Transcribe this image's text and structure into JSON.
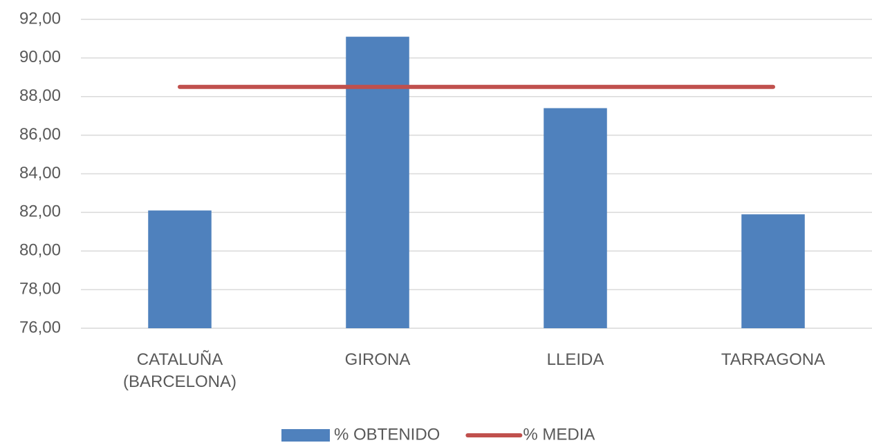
{
  "chart_data": {
    "type": "bar",
    "categories": [
      "CATALUÑA (BARCELONA)",
      "GIRONA",
      "LLEIDA",
      "TARRAGONA"
    ],
    "series": [
      {
        "name": "% OBTENIDO",
        "type": "bar",
        "color": "#4f81bd",
        "values": [
          82.1,
          91.1,
          87.4,
          81.9
        ]
      },
      {
        "name": "% MEDIA",
        "type": "line",
        "color": "#c0504d",
        "values": [
          88.5,
          88.5,
          88.5,
          88.5
        ]
      }
    ],
    "ylim": [
      76,
      92
    ],
    "yticks": [
      {
        "value": 76,
        "label": "76,00"
      },
      {
        "value": 78,
        "label": "78,00"
      },
      {
        "value": 80,
        "label": "80,00"
      },
      {
        "value": 82,
        "label": "82,00"
      },
      {
        "value": 84,
        "label": "84,00"
      },
      {
        "value": 86,
        "label": "86,00"
      },
      {
        "value": 88,
        "label": "88,00"
      },
      {
        "value": 90,
        "label": "90,00"
      },
      {
        "value": 92,
        "label": "92,00"
      }
    ],
    "grid": true,
    "legend": "bottom"
  }
}
